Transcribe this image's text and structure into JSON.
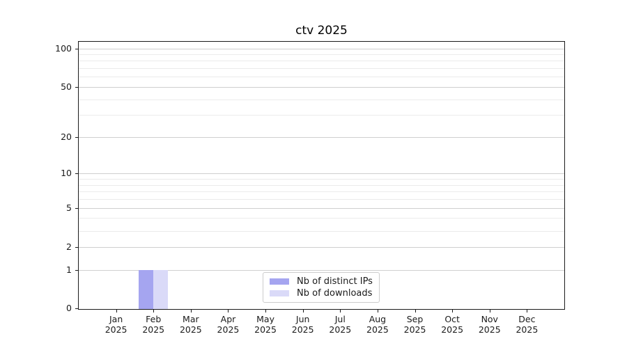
{
  "chart_data": {
    "type": "bar",
    "title": "ctv 2025",
    "categories": [
      "Jan",
      "Feb",
      "Mar",
      "Apr",
      "May",
      "Jun",
      "Jul",
      "Aug",
      "Sep",
      "Oct",
      "Nov",
      "Dec"
    ],
    "category_year": "2025",
    "series": [
      {
        "name": "Nb of distinct IPs",
        "color": "#a5a5f0",
        "values": [
          0,
          1,
          0,
          0,
          0,
          0,
          0,
          0,
          0,
          0,
          0,
          0
        ]
      },
      {
        "name": "Nb of downloads",
        "color": "#dadaf8",
        "values": [
          0,
          1,
          0,
          0,
          0,
          0,
          0,
          0,
          0,
          0,
          0,
          0
        ]
      }
    ],
    "y_scale": "log1p",
    "y_major_ticks": [
      0,
      1,
      2,
      5,
      10,
      20,
      50,
      100
    ],
    "y_minor_ticks": [
      3,
      4,
      6,
      7,
      8,
      9,
      30,
      40,
      60,
      70,
      80,
      90
    ],
    "ylim": [
      0,
      112
    ],
    "xlabel": "",
    "ylabel": "",
    "grid": "horizontal",
    "legend": {
      "position": "lower center"
    }
  },
  "colors": {
    "spine": "#1a1a1a",
    "grid_major": "#cfcfcf",
    "grid_minor": "#ebebeb",
    "text": "#1a1a1a",
    "background": "#ffffff"
  }
}
